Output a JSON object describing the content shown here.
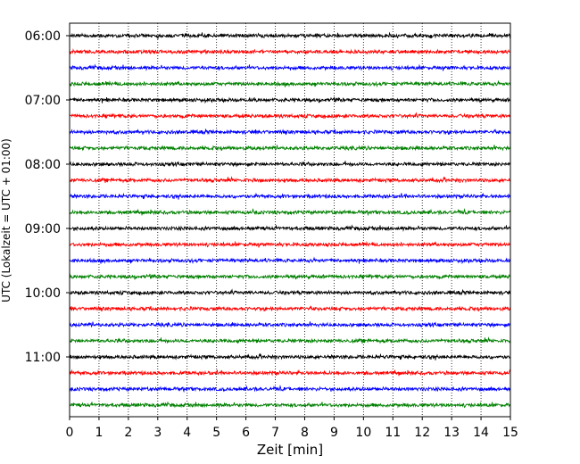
{
  "chart_data": {
    "type": "line",
    "title": "",
    "xlabel": "Zeit  [min]",
    "ylabel": "UTC (Lokalzeit = UTC + 01:00)",
    "xlim": [
      0,
      15
    ],
    "xticks": [
      0,
      1,
      2,
      3,
      4,
      5,
      6,
      7,
      8,
      9,
      10,
      11,
      12,
      13,
      14,
      15
    ],
    "yticks": [
      "06:00",
      "07:00",
      "08:00",
      "09:00",
      "10:00",
      "11:00"
    ],
    "grid": "vertical dotted",
    "start_time": "06:00",
    "trace_interval_min": 15,
    "trace_count": 24,
    "trace_colors": [
      "#000000",
      "#ff0000",
      "#0000ff",
      "#008000"
    ]
  }
}
